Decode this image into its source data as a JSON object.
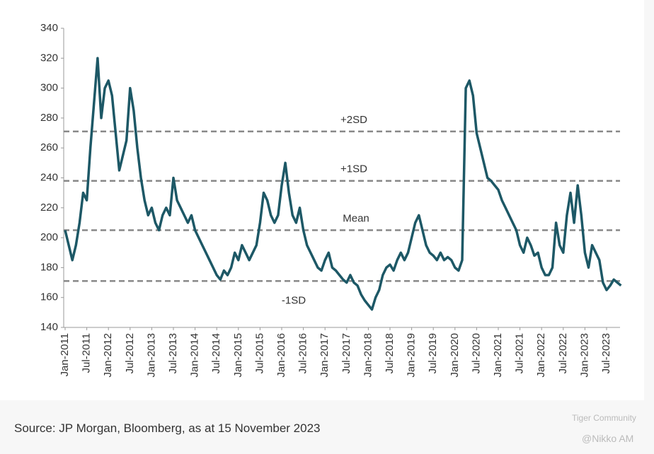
{
  "chart_data": {
    "type": "line",
    "categories": [
      "Jan-2011",
      null,
      null,
      null,
      null,
      null,
      "Jul-2011",
      null,
      null,
      null,
      null,
      null,
      "Jan-2012",
      null,
      null,
      null,
      null,
      null,
      "Jul-2012",
      null,
      null,
      null,
      null,
      null,
      "Jan-2013",
      null,
      null,
      null,
      null,
      null,
      "Jul-2013",
      null,
      null,
      null,
      null,
      null,
      "Jan-2014",
      null,
      null,
      null,
      null,
      null,
      "Jul-2014",
      null,
      null,
      null,
      null,
      null,
      "Jan-2015",
      null,
      null,
      null,
      null,
      null,
      "Jul-2015",
      null,
      null,
      null,
      null,
      null,
      "Jan-2016",
      null,
      null,
      null,
      null,
      null,
      "Jul-2016",
      null,
      null,
      null,
      null,
      null,
      "Jan-2017",
      null,
      null,
      null,
      null,
      null,
      "Jul-2017",
      null,
      null,
      null,
      null,
      null,
      "Jan-2018",
      null,
      null,
      null,
      null,
      null,
      "Jul-2018",
      null,
      null,
      null,
      null,
      null,
      "Jan-2019",
      null,
      null,
      null,
      null,
      null,
      "Jul-2019",
      null,
      null,
      null,
      null,
      null,
      "Jan-2020",
      null,
      null,
      null,
      null,
      null,
      "Jul-2020",
      null,
      null,
      null,
      null,
      null,
      "Jan-2021",
      null,
      null,
      null,
      null,
      null,
      "Jul-2021",
      null,
      null,
      null,
      null,
      null,
      "Jan-2022",
      null,
      null,
      null,
      null,
      null,
      "Jul-2022",
      null,
      null,
      null,
      null,
      null,
      "Jan-2023",
      null,
      null,
      null,
      null,
      null,
      "Jul-2023",
      null,
      null,
      null,
      null
    ],
    "values": [
      205,
      195,
      185,
      195,
      210,
      230,
      225,
      260,
      290,
      320,
      280,
      300,
      305,
      295,
      270,
      245,
      255,
      265,
      300,
      285,
      260,
      240,
      225,
      215,
      220,
      210,
      205,
      215,
      220,
      215,
      240,
      225,
      220,
      215,
      210,
      215,
      205,
      200,
      195,
      190,
      185,
      180,
      175,
      172,
      178,
      175,
      180,
      190,
      185,
      195,
      190,
      185,
      190,
      195,
      210,
      230,
      225,
      215,
      210,
      215,
      235,
      250,
      230,
      215,
      210,
      220,
      205,
      195,
      190,
      185,
      180,
      178,
      185,
      190,
      180,
      178,
      175,
      172,
      170,
      175,
      170,
      168,
      162,
      158,
      155,
      152,
      160,
      165,
      175,
      180,
      182,
      178,
      185,
      190,
      185,
      190,
      200,
      210,
      215,
      205,
      195,
      190,
      188,
      185,
      190,
      185,
      187,
      185,
      180,
      178,
      185,
      300,
      305,
      295,
      270,
      260,
      250,
      240,
      238,
      235,
      232,
      225,
      220,
      215,
      210,
      205,
      195,
      190,
      200,
      195,
      188,
      190,
      180,
      175,
      175,
      180,
      210,
      195,
      190,
      215,
      230,
      210,
      235,
      215,
      190,
      180,
      195,
      190,
      185,
      170,
      165,
      168,
      172,
      170,
      168
    ],
    "color": "#1d5866",
    "ylim": [
      140,
      340
    ],
    "yticks": [
      140,
      160,
      180,
      200,
      220,
      240,
      260,
      280,
      300,
      320,
      340
    ],
    "reference_lines": [
      {
        "label": "+2SD",
        "value": 271
      },
      {
        "label": "+1SD",
        "value": 238
      },
      {
        "label": "Mean",
        "value": 205
      },
      {
        "label": "-1SD",
        "value": 171
      }
    ]
  },
  "source": "Source: JP Morgan, Bloomberg, as at 15 November 2023",
  "watermark": [
    "Tiger Community",
    "@Nikko AM"
  ]
}
